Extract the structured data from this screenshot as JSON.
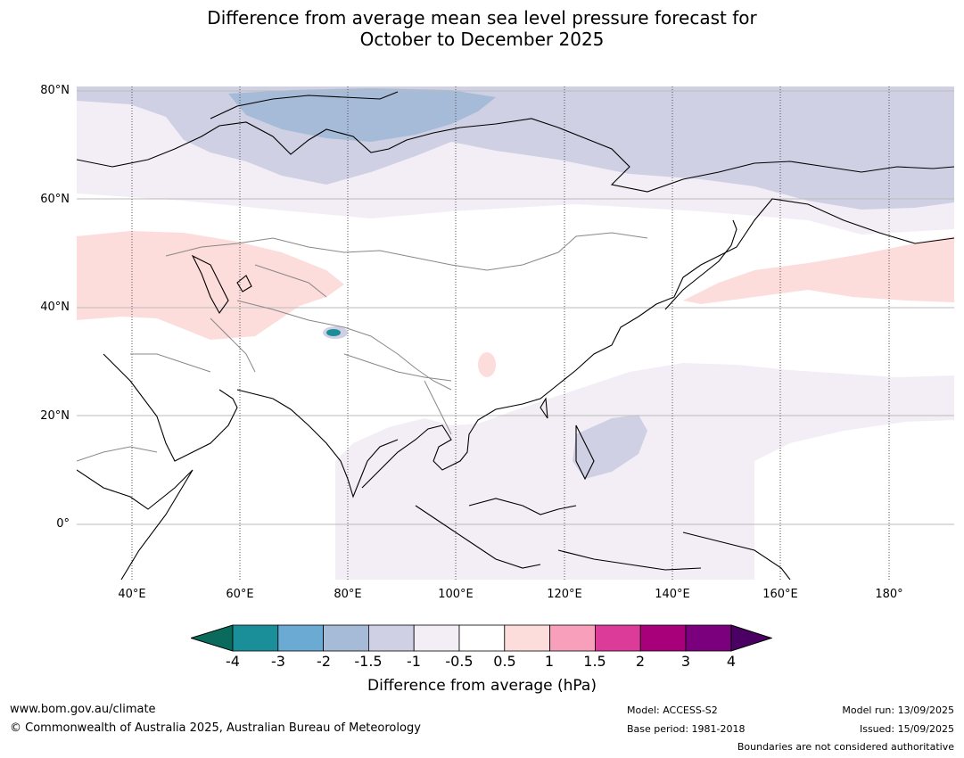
{
  "title_line1": "Difference from average mean sea level pressure forecast for",
  "title_line2": "October to December 2025",
  "lat_labels": [
    "80°N",
    "60°N",
    "40°N",
    "20°N",
    "0°"
  ],
  "lon_labels": [
    "40°E",
    "60°E",
    "80°E",
    "100°E",
    "120°E",
    "140°E",
    "160°E",
    "180°"
  ],
  "colorbar": {
    "tick_labels": [
      "-4",
      "-3",
      "-2",
      "-1.5",
      "-1",
      "-0.5",
      "0.5",
      "1",
      "1.5",
      "2",
      "3",
      "4"
    ],
    "colors": [
      "#0a6b5c",
      "#1b8f99",
      "#6aaad3",
      "#a5bbd8",
      "#cfd0e4",
      "#f3eef6",
      "#ffffff",
      "#fddcdc",
      "#f8a0bb",
      "#dc3b9a",
      "#a8007b",
      "#7a007d",
      "#4b0063"
    ],
    "title": "Difference from average (hPa)"
  },
  "footer": {
    "website": "www.bom.gov.au/climate",
    "copyright": "© Commonwealth of Australia 2025, Australian Bureau of Meteorology",
    "model": "Model: ACCESS-S2",
    "base_period": "Base period: 1981-2018",
    "model_run": "Model run: 13/09/2025",
    "issued": "Issued: 15/09/2025",
    "disclaimer": "Boundaries are not considered authoritative"
  },
  "map_colors": {
    "lavender_light": "#f3eef6",
    "lavender": "#cfd0e4",
    "steel_blue": "#a5bbd8",
    "pink": "#fddcdc",
    "teal": "#1b8f99"
  }
}
